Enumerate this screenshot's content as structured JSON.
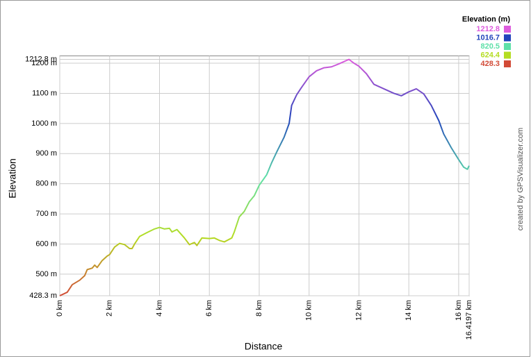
{
  "chart_data": {
    "type": "line",
    "x_label": "Distance",
    "y_label": "Elevation",
    "credit": "created by GPSVisualizer.com",
    "xlim": [
      0,
      16.4197
    ],
    "xticks": [
      {
        "value": 0,
        "label": "0 km"
      },
      {
        "value": 2,
        "label": "2 km"
      },
      {
        "value": 4,
        "label": "4 km"
      },
      {
        "value": 6,
        "label": "6 km"
      },
      {
        "value": 8,
        "label": "8 km"
      },
      {
        "value": 10,
        "label": "10 km"
      },
      {
        "value": 12,
        "label": "12 km"
      },
      {
        "value": 14,
        "label": "14 km"
      },
      {
        "value": 16,
        "label": "16 km"
      },
      {
        "value": 16.4197,
        "label": "16.4197 km"
      }
    ],
    "ylim": [
      428.3,
      1212.8
    ],
    "yticks": [
      {
        "value": 428.3,
        "label": "428.3 m"
      },
      {
        "value": 500,
        "label": "500 m"
      },
      {
        "value": 600,
        "label": "600 m"
      },
      {
        "value": 700,
        "label": "700 m"
      },
      {
        "value": 800,
        "label": "800 m"
      },
      {
        "value": 900,
        "label": "900 m"
      },
      {
        "value": 1000,
        "label": "1000 m"
      },
      {
        "value": 1100,
        "label": "1100 m"
      },
      {
        "value": 1200,
        "label": "1200 m"
      },
      {
        "value": 1212.8,
        "label": "1212.8 m"
      }
    ],
    "grid": true,
    "color_scale": {
      "title": "Elevation (m)",
      "stops": [
        {
          "value": 1212.8,
          "color": "#dd5cdd"
        },
        {
          "value": 1016.7,
          "color": "#2244bb"
        },
        {
          "value": 820.5,
          "color": "#5ee0a8"
        },
        {
          "value": 624.4,
          "color": "#b4dd22"
        },
        {
          "value": 428.3,
          "color": "#d24a36"
        }
      ]
    },
    "x": [
      0,
      0.3,
      0.5,
      0.8,
      1.0,
      1.1,
      1.3,
      1.4,
      1.5,
      1.7,
      1.9,
      2.0,
      2.2,
      2.4,
      2.6,
      2.8,
      2.9,
      3.0,
      3.2,
      3.5,
      3.8,
      4.0,
      4.2,
      4.4,
      4.5,
      4.7,
      5.0,
      5.2,
      5.4,
      5.5,
      5.7,
      6.0,
      6.2,
      6.4,
      6.6,
      6.9,
      7.0,
      7.2,
      7.4,
      7.6,
      7.8,
      8.0,
      8.3,
      8.5,
      8.7,
      9.0,
      9.2,
      9.3,
      9.5,
      9.7,
      10.0,
      10.3,
      10.6,
      10.9,
      11.2,
      11.6,
      11.8,
      12.0,
      12.3,
      12.6,
      13.0,
      13.4,
      13.7,
      14.0,
      14.3,
      14.6,
      14.9,
      15.2,
      15.4,
      15.7,
      16.0,
      16.2,
      16.35,
      16.4197
    ],
    "values": [
      428.3,
      440,
      465,
      480,
      495,
      515,
      520,
      530,
      522,
      545,
      560,
      565,
      590,
      602,
      598,
      585,
      585,
      600,
      625,
      638,
      650,
      655,
      650,
      652,
      640,
      648,
      620,
      598,
      605,
      595,
      620,
      618,
      620,
      612,
      607,
      620,
      640,
      690,
      708,
      740,
      760,
      795,
      830,
      870,
      905,
      955,
      1000,
      1060,
      1095,
      1120,
      1155,
      1175,
      1185,
      1188,
      1198,
      1212.8,
      1200,
      1190,
      1165,
      1130,
      1115,
      1100,
      1092,
      1105,
      1115,
      1098,
      1060,
      1010,
      965,
      920,
      880,
      855,
      848,
      860
    ]
  }
}
